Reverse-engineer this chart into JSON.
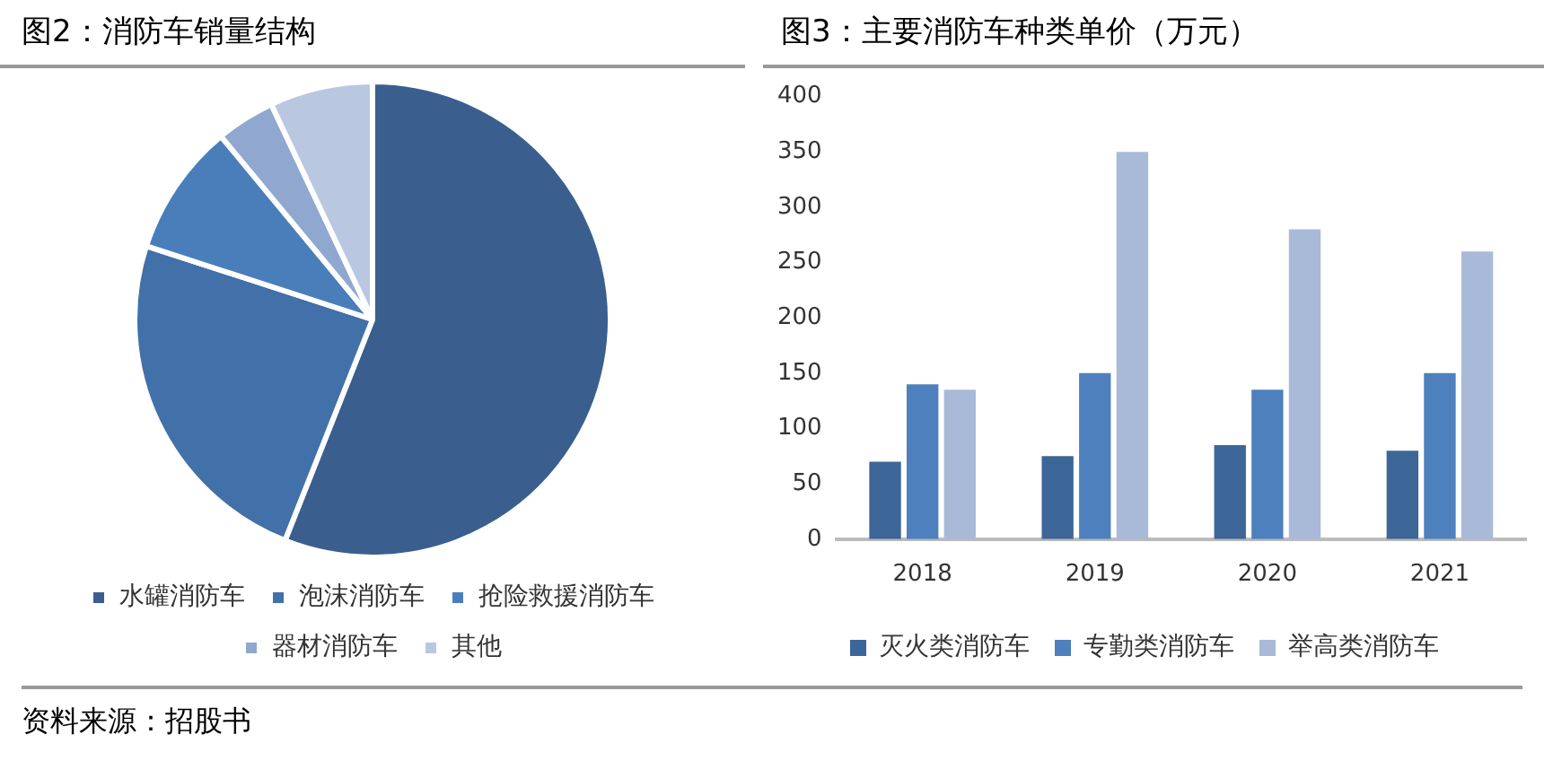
{
  "chart_data": [
    {
      "type": "pie",
      "title": "图2：消防车销量结构",
      "categories": [
        "水罐消防车",
        "泡沫消防车",
        "抢险救援消防车",
        "器材消防车",
        "其他"
      ],
      "values": [
        56,
        24,
        9,
        4,
        7
      ],
      "colors": [
        "#3a5f8e",
        "#4270a8",
        "#4a7ebb",
        "#90a8cf",
        "#b9c7e0"
      ],
      "legend": "bottom",
      "annotations": [
        "资料来源：招股书"
      ]
    },
    {
      "type": "bar",
      "title": "图3：主要消防车种类单价（万元）",
      "categories": [
        "2018",
        "2019",
        "2020",
        "2021"
      ],
      "series": [
        {
          "name": "灭火类消防车",
          "color": "#3d6698",
          "values": [
            70,
            75,
            85,
            80
          ]
        },
        {
          "name": "专勤类消防车",
          "color": "#4e80bd",
          "values": [
            140,
            150,
            135,
            150
          ]
        },
        {
          "name": "举高类消防车",
          "color": "#a9b9d8",
          "values": [
            135,
            350,
            280,
            260
          ]
        }
      ],
      "ylim": [
        0,
        400
      ],
      "yticks": [
        0,
        50,
        100,
        150,
        200,
        250,
        300,
        350,
        400
      ],
      "grid": false,
      "legend": "bottom"
    }
  ]
}
